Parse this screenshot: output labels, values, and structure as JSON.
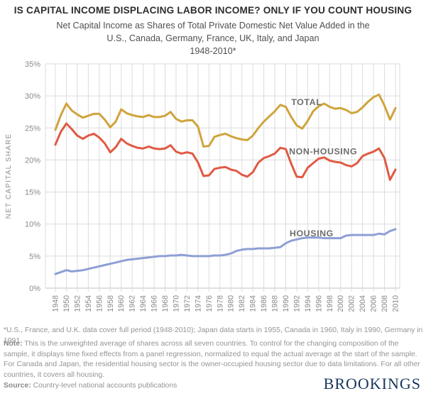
{
  "header": {
    "title": "IS CAPITAL INCOME DISPLACING LABOR INCOME? ONLY IF YOU COUNT HOUSING",
    "subtitle_line1": "Net Capital Income as Shares of Total Private Domestic Net Value Added in the",
    "subtitle_line2": "U.S., Canada, Germany, France, UK, Italy, and Japan",
    "subtitle_line3": "1948-2010*"
  },
  "chart_data": {
    "type": "line",
    "title": "Net Capital Income as Shares of Total Private Domestic Net Value Added, 1948-2010",
    "xlabel": "",
    "ylabel": "NET CAPITAL SHARE",
    "ylim": [
      0,
      35
    ],
    "ytick_step": 5,
    "ytick_suffix": "%",
    "xtick_step": 2,
    "grid": true,
    "legend_position": "inline-labels",
    "x": [
      1948,
      1949,
      1950,
      1951,
      1952,
      1953,
      1954,
      1955,
      1956,
      1957,
      1958,
      1959,
      1960,
      1961,
      1962,
      1963,
      1964,
      1965,
      1966,
      1967,
      1968,
      1969,
      1970,
      1971,
      1972,
      1973,
      1974,
      1975,
      1976,
      1977,
      1978,
      1979,
      1980,
      1981,
      1982,
      1983,
      1984,
      1985,
      1986,
      1987,
      1988,
      1989,
      1990,
      1991,
      1992,
      1993,
      1994,
      1995,
      1996,
      1997,
      1998,
      1999,
      2000,
      2001,
      2002,
      2003,
      2004,
      2005,
      2006,
      2007,
      2008,
      2009,
      2010
    ],
    "series": [
      {
        "name": "TOTAL",
        "color": "#CFA43C",
        "values": [
          24.7,
          27.0,
          28.8,
          27.7,
          27.1,
          26.6,
          26.9,
          27.2,
          27.2,
          26.3,
          25.1,
          26.0,
          27.9,
          27.3,
          27.0,
          26.8,
          26.7,
          27.0,
          26.7,
          26.7,
          26.9,
          27.5,
          26.4,
          26.0,
          26.2,
          26.2,
          25.2,
          22.1,
          22.2,
          23.6,
          23.9,
          24.1,
          23.7,
          23.4,
          23.2,
          23.1,
          23.8,
          25.0,
          26.0,
          26.8,
          27.6,
          28.6,
          28.3,
          26.7,
          25.4,
          24.9,
          26.1,
          27.6,
          28.4,
          28.8,
          28.3,
          28.0,
          28.1,
          27.8,
          27.3,
          27.5,
          28.2,
          29.1,
          29.8,
          30.2,
          28.5,
          26.3,
          28.1
        ]
      },
      {
        "name": "NON-HOUSING",
        "color": "#E05A43",
        "values": [
          22.4,
          24.4,
          25.7,
          24.8,
          23.8,
          23.3,
          23.8,
          24.1,
          23.5,
          22.6,
          21.2,
          22.0,
          23.3,
          22.6,
          22.2,
          21.9,
          21.8,
          22.1,
          21.8,
          21.7,
          21.8,
          22.3,
          21.3,
          21.0,
          21.2,
          21.0,
          19.6,
          17.5,
          17.6,
          18.6,
          18.8,
          18.9,
          18.5,
          18.3,
          17.7,
          17.4,
          18.1,
          19.6,
          20.3,
          20.6,
          21.0,
          21.9,
          21.7,
          19.4,
          17.4,
          17.3,
          18.8,
          19.5,
          20.2,
          20.4,
          19.9,
          19.7,
          19.6,
          19.2,
          19.0,
          19.5,
          20.6,
          21.0,
          21.3,
          21.8,
          20.3,
          16.9,
          18.5
        ]
      },
      {
        "name": "HOUSING",
        "color": "#8E9FD6",
        "values": [
          2.2,
          2.5,
          2.8,
          2.6,
          2.7,
          2.8,
          3.0,
          3.2,
          3.4,
          3.6,
          3.8,
          4.0,
          4.2,
          4.4,
          4.5,
          4.6,
          4.7,
          4.8,
          4.9,
          5.0,
          5.0,
          5.1,
          5.1,
          5.2,
          5.1,
          5.0,
          5.0,
          5.0,
          5.0,
          5.1,
          5.1,
          5.2,
          5.4,
          5.8,
          6.0,
          6.1,
          6.1,
          6.2,
          6.2,
          6.2,
          6.3,
          6.4,
          7.0,
          7.4,
          7.6,
          7.8,
          7.9,
          7.9,
          7.9,
          7.8,
          7.8,
          7.8,
          7.8,
          8.2,
          8.3,
          8.3,
          8.3,
          8.3,
          8.3,
          8.5,
          8.4,
          8.9,
          9.2
        ]
      }
    ],
    "annotations": [
      {
        "text": "TOTAL",
        "x": 1991.0,
        "y": 28.6
      },
      {
        "text": "NON-HOUSING",
        "x": 1990.6,
        "y": 20.9
      },
      {
        "text": "HOUSING",
        "x": 1990.7,
        "y": 8.1
      }
    ]
  },
  "footnotes": {
    "star": "*U.S., France, and U.K. data cover full period (1948-2010); Japan data starts in 1955, Canada in 1960, Italy in 1990, Germany in 1991.",
    "note_label": "Note:",
    "note_text": " This is the unweighted average of shares across all seven countries. To control for the changing composition of the sample, it displays time fixed effects from a panel regression, normalized to equal the actual average at the start of the sample.",
    "canada": "For Canada and Japan, the residential housing sector is the owner-occupied housing sector due to data limitations. For all other countries, it covers all housing."
  },
  "source": {
    "label": "Source:",
    "text": " Country-level national accounts publications"
  },
  "logo_text": "BROOKINGS",
  "colors": {
    "total": "#CFA43C",
    "non_housing": "#E05A43",
    "housing": "#8E9FD6",
    "grid": "#dcdcdc",
    "axis_text": "#8a8a8a",
    "series_label": "#6e6e6e",
    "logo": "#17365c"
  }
}
